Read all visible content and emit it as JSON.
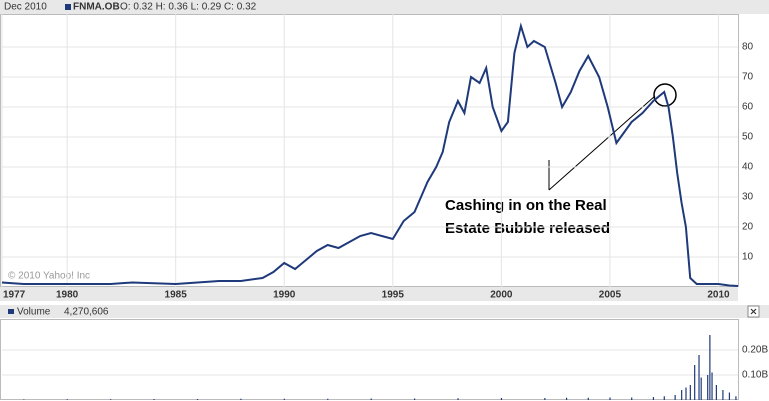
{
  "chart_data": [
    {
      "type": "line",
      "date": "Dec 2010",
      "title": "FNMA.OB",
      "quote": "O: 0.32 H: 0.36 L: 0.29 C: 0.32",
      "annotation": "Cashing in on the Real Estate Bubble released",
      "credit": "© 2010 Yahoo! Inc",
      "color": "#1f3a7a",
      "grid": true,
      "x": [
        1977,
        1978,
        1980,
        1982,
        1983,
        1985,
        1986,
        1987,
        1988,
        1989,
        1989.5,
        1990,
        1990.5,
        1991,
        1991.5,
        1992,
        1992.5,
        1993,
        1993.5,
        1994,
        1994.5,
        1995,
        1995.5,
        1996,
        1996.3,
        1996.6,
        1997,
        1997.3,
        1997.6,
        1998,
        1998.3,
        1998.6,
        1999,
        1999.3,
        1999.6,
        2000,
        2000.3,
        2000.6,
        2000.9,
        2001.2,
        2001.5,
        2002,
        2002.5,
        2002.8,
        2003.2,
        2003.6,
        2004,
        2004.5,
        2004.9,
        2005.3,
        2005.7,
        2006,
        2006.5,
        2007,
        2007.5,
        2007.7,
        2007.9,
        2008.1,
        2008.3,
        2008.5,
        2008.7,
        2009,
        2009.5,
        2010,
        2010.5,
        2010.9
      ],
      "values": [
        1.5,
        1,
        1,
        1,
        1.5,
        1,
        1.5,
        2,
        2,
        3,
        5,
        8,
        6,
        9,
        12,
        14,
        13,
        15,
        17,
        18,
        17,
        16,
        22,
        25,
        30,
        35,
        40,
        45,
        55,
        62,
        58,
        70,
        68,
        73,
        60,
        52,
        55,
        78,
        87,
        80,
        82,
        80,
        68,
        60,
        65,
        72,
        77,
        70,
        60,
        48,
        52,
        55,
        58,
        62,
        65,
        60,
        50,
        38,
        28,
        20,
        3,
        1,
        1,
        1,
        0.5,
        0.32
      ],
      "xlim": [
        1977,
        2010.9
      ],
      "xticks": [
        1977,
        1980,
        1985,
        1990,
        1995,
        2000,
        2005,
        2010
      ],
      "ylim": [
        0,
        90
      ],
      "yticks": [
        10,
        20,
        30,
        40,
        50,
        60,
        70,
        80
      ]
    },
    {
      "type": "bar",
      "title": "Volume",
      "subtitle": "4,270,606",
      "color": "#1f3a7a",
      "x": [
        1978,
        1980,
        1982,
        1984,
        1986,
        1988,
        1990,
        1992,
        1994,
        1996,
        1998,
        2000,
        2002,
        2003,
        2004,
        2005,
        2006,
        2007,
        2007.5,
        2008,
        2008.3,
        2008.5,
        2008.7,
        2008.9,
        2009.1,
        2009.2,
        2009.5,
        2009.6,
        2009.7,
        2009.9,
        2010.2,
        2010.5,
        2010.8
      ],
      "values": [
        2000000,
        3000000,
        3000000,
        4000000,
        4000000,
        5000000,
        5000000,
        5000000,
        6000000,
        6000000,
        7000000,
        8000000,
        8000000,
        9000000,
        9000000,
        10000000,
        10000000,
        12000000,
        15000000,
        20000000,
        40000000,
        50000000,
        60000000,
        140000000,
        180000000,
        90000000,
        100000000,
        260000000,
        110000000,
        60000000,
        40000000,
        30000000,
        15000000
      ],
      "xlim": [
        1977,
        2010.9
      ],
      "ylim": [
        0,
        312000000
      ],
      "yticks": [
        {
          "value": 100000000,
          "label": "0.10B"
        },
        {
          "value": 200000000,
          "label": "0.20B"
        }
      ]
    }
  ]
}
